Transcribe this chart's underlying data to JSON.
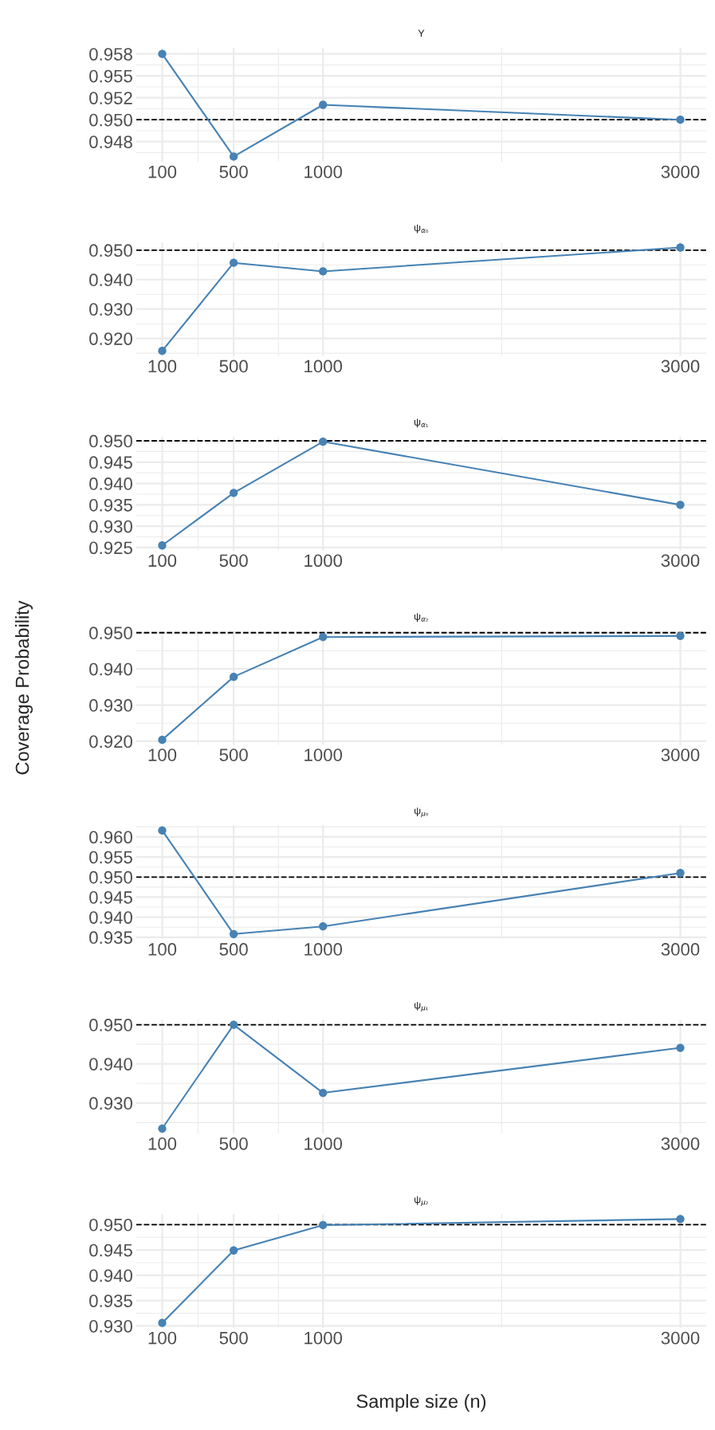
{
  "chart_data": [
    {
      "type": "line",
      "title": "Y",
      "x": [
        100,
        500,
        1000,
        3000
      ],
      "series": [
        {
          "color": "#4682b4",
          "values": [
            0.9575,
            0.9458,
            0.9517,
            0.95
          ]
        }
      ],
      "xlim": [
        -45,
        3145
      ],
      "xticks": [
        100,
        500,
        1000,
        3000
      ],
      "ylim": [
        0.9452,
        0.9582
      ],
      "yticks": [
        {
          "value": 0.9475,
          "label": "0.948"
        },
        {
          "value": 0.95,
          "label": "0.950"
        },
        {
          "value": 0.9525,
          "label": "0.952"
        },
        {
          "value": 0.955,
          "label": "0.955"
        },
        {
          "value": 0.9575,
          "label": "0.958"
        }
      ],
      "ref_lines": [
        {
          "axis": "y",
          "value": 0.95,
          "color": "#000000",
          "line_style": "dashed"
        }
      ],
      "grid": true,
      "marker": "circle",
      "line_style": "solid"
    },
    {
      "type": "line",
      "title": "ψ$_{α₀}$",
      "x": [
        100,
        500,
        1000,
        3000
      ],
      "series": [
        {
          "color": "#4682b4",
          "values": [
            0.9158,
            0.9457,
            0.9428,
            0.9509
          ]
        }
      ],
      "xlim": [
        -45,
        3145
      ],
      "xticks": [
        100,
        500,
        1000,
        3000
      ],
      "ylim": [
        0.914,
        0.9527
      ],
      "yticks": [
        {
          "value": 0.92,
          "label": "0.920"
        },
        {
          "value": 0.93,
          "label": "0.930"
        },
        {
          "value": 0.94,
          "label": "0.940"
        },
        {
          "value": 0.95,
          "label": "0.950"
        }
      ],
      "ref_lines": [
        {
          "axis": "y",
          "value": 0.95,
          "color": "#000000",
          "line_style": "dashed"
        }
      ],
      "grid": true,
      "marker": "circle",
      "line_style": "solid"
    },
    {
      "type": "line",
      "title": "ψ$_{α₁}$",
      "x": [
        100,
        500,
        1000,
        3000
      ],
      "series": [
        {
          "color": "#4682b4",
          "values": [
            0.9255,
            0.9378,
            0.9498,
            0.935
          ]
        }
      ],
      "xlim": [
        -45,
        3145
      ],
      "xticks": [
        100,
        500,
        1000,
        3000
      ],
      "ylim": [
        0.9243,
        0.951
      ],
      "yticks": [
        {
          "value": 0.925,
          "label": "0.925"
        },
        {
          "value": 0.93,
          "label": "0.930"
        },
        {
          "value": 0.935,
          "label": "0.935"
        },
        {
          "value": 0.94,
          "label": "0.940"
        },
        {
          "value": 0.945,
          "label": "0.945"
        },
        {
          "value": 0.95,
          "label": "0.950"
        }
      ],
      "ref_lines": [
        {
          "axis": "y",
          "value": 0.95,
          "color": "#000000",
          "line_style": "dashed"
        }
      ],
      "grid": true,
      "marker": "circle",
      "line_style": "solid"
    },
    {
      "type": "line",
      "title": "ψ$_{α₂}$",
      "ylabel": "Coverage Probability",
      "x": [
        100,
        500,
        1000,
        3000
      ],
      "series": [
        {
          "color": "#4682b4",
          "values": [
            0.9204,
            0.9378,
            0.9488,
            0.9491
          ]
        }
      ],
      "xlim": [
        -45,
        3145
      ],
      "xticks": [
        100,
        500,
        1000,
        3000
      ],
      "ylim": [
        0.919,
        0.9505
      ],
      "yticks": [
        {
          "value": 0.92,
          "label": "0.920"
        },
        {
          "value": 0.93,
          "label": "0.930"
        },
        {
          "value": 0.94,
          "label": "0.940"
        },
        {
          "value": 0.95,
          "label": "0.950"
        }
      ],
      "ref_lines": [
        {
          "axis": "y",
          "value": 0.95,
          "color": "#000000",
          "line_style": "dashed"
        }
      ],
      "grid": true,
      "marker": "circle",
      "line_style": "solid"
    },
    {
      "type": "line",
      "title": "ψ$_{μ₀}$",
      "x": [
        100,
        500,
        1000,
        3000
      ],
      "series": [
        {
          "color": "#4682b4",
          "values": [
            0.9616,
            0.9358,
            0.9377,
            0.951
          ]
        }
      ],
      "xlim": [
        -45,
        3145
      ],
      "xticks": [
        100,
        500,
        1000,
        3000
      ],
      "ylim": [
        0.9345,
        0.9629
      ],
      "yticks": [
        {
          "value": 0.935,
          "label": "0.935"
        },
        {
          "value": 0.94,
          "label": "0.940"
        },
        {
          "value": 0.945,
          "label": "0.945"
        },
        {
          "value": 0.95,
          "label": "0.950"
        },
        {
          "value": 0.955,
          "label": "0.955"
        },
        {
          "value": 0.96,
          "label": "0.960"
        }
      ],
      "ref_lines": [
        {
          "axis": "y",
          "value": 0.95,
          "color": "#000000",
          "line_style": "dashed"
        }
      ],
      "grid": true,
      "marker": "circle",
      "line_style": "solid"
    },
    {
      "type": "line",
      "title": "ψ$_{μ₁}$",
      "x": [
        100,
        500,
        1000,
        3000
      ],
      "series": [
        {
          "color": "#4682b4",
          "values": [
            0.9235,
            0.95,
            0.9326,
            0.9441
          ]
        }
      ],
      "xlim": [
        -45,
        3145
      ],
      "xticks": [
        100,
        500,
        1000,
        3000
      ],
      "ylim": [
        0.9222,
        0.9513
      ],
      "yticks": [
        {
          "value": 0.93,
          "label": "0.930"
        },
        {
          "value": 0.94,
          "label": "0.940"
        },
        {
          "value": 0.95,
          "label": "0.950"
        }
      ],
      "ref_lines": [
        {
          "axis": "y",
          "value": 0.95,
          "color": "#000000",
          "line_style": "dashed"
        }
      ],
      "grid": true,
      "marker": "circle",
      "line_style": "solid"
    },
    {
      "type": "line",
      "title": "ψ$_{μ₂}$",
      "xlabel": "Sample size (n)",
      "x": [
        100,
        500,
        1000,
        3000
      ],
      "series": [
        {
          "color": "#4682b4",
          "values": [
            0.9306,
            0.9449,
            0.9499,
            0.9511
          ]
        }
      ],
      "xlim": [
        -45,
        3145
      ],
      "xticks": [
        100,
        500,
        1000,
        3000
      ],
      "ylim": [
        0.9296,
        0.9521
      ],
      "yticks": [
        {
          "value": 0.93,
          "label": "0.930"
        },
        {
          "value": 0.935,
          "label": "0.935"
        },
        {
          "value": 0.94,
          "label": "0.940"
        },
        {
          "value": 0.945,
          "label": "0.945"
        },
        {
          "value": 0.95,
          "label": "0.950"
        }
      ],
      "ref_lines": [
        {
          "axis": "y",
          "value": 0.95,
          "color": "#000000",
          "line_style": "dashed"
        }
      ],
      "grid": true,
      "marker": "circle",
      "line_style": "solid"
    }
  ]
}
